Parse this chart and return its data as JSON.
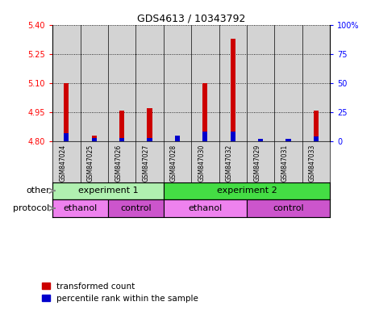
{
  "title": "GDS4613 / 10343792",
  "samples": [
    "GSM847024",
    "GSM847025",
    "GSM847026",
    "GSM847027",
    "GSM847028",
    "GSM847030",
    "GSM847032",
    "GSM847029",
    "GSM847031",
    "GSM847033"
  ],
  "red_values": [
    5.1,
    4.83,
    4.96,
    4.97,
    4.82,
    5.1,
    5.33,
    4.81,
    4.81,
    4.96
  ],
  "blue_values": [
    7,
    3,
    3,
    3,
    5,
    8,
    8,
    2,
    2,
    4
  ],
  "ylim_left": [
    4.8,
    5.4
  ],
  "yticks_left": [
    4.8,
    4.95,
    5.1,
    5.25,
    5.4
  ],
  "yticks_right": [
    0,
    25,
    50,
    75,
    100
  ],
  "ylim_right": [
    0,
    100
  ],
  "base_value": 4.8,
  "other_groups": [
    {
      "label": "experiment 1",
      "start": 0,
      "end": 4,
      "color": "#b0f0b0"
    },
    {
      "label": "experiment 2",
      "start": 4,
      "end": 10,
      "color": "#44dd44"
    }
  ],
  "protocol_groups": [
    {
      "label": "ethanol",
      "start": 0,
      "end": 2,
      "color": "#ee82ee"
    },
    {
      "label": "control",
      "start": 2,
      "end": 4,
      "color": "#cc55cc"
    },
    {
      "label": "ethanol",
      "start": 4,
      "end": 7,
      "color": "#ee82ee"
    },
    {
      "label": "control",
      "start": 7,
      "end": 10,
      "color": "#cc55cc"
    }
  ],
  "red_color": "#cc0000",
  "blue_color": "#0000cc",
  "bar_bg_color": "#d3d3d3",
  "legend_red": "transformed count",
  "legend_blue": "percentile rank within the sample",
  "other_label": "other",
  "protocol_label": "protocol"
}
